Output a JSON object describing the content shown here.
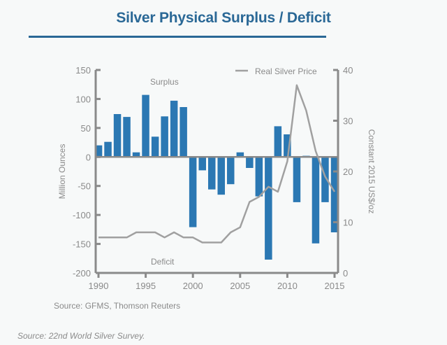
{
  "header": {
    "title": "Silver Physical Surplus / Deficit"
  },
  "chart_data": {
    "type": "bar",
    "title": "Silver Physical Surplus / Deficit",
    "categories": [
      1990,
      1991,
      1992,
      1993,
      1994,
      1995,
      1996,
      1997,
      1998,
      1999,
      2000,
      2001,
      2002,
      2003,
      2004,
      2005,
      2006,
      2007,
      2008,
      2009,
      2010,
      2011,
      2012,
      2013,
      2014,
      2015
    ],
    "series": [
      {
        "name": "Surplus / Deficit",
        "type": "bar",
        "axis": "left",
        "color": "#2b78b3",
        "values": [
          20,
          26,
          74,
          69,
          8,
          107,
          35,
          70,
          97,
          86,
          -121,
          -23,
          -56,
          -65,
          -47,
          8,
          -19,
          -68,
          -177,
          53,
          39,
          -78,
          2,
          -149,
          -78,
          -130
        ]
      },
      {
        "name": "Real Silver Price",
        "type": "line",
        "axis": "right",
        "color": "#a0a0a0",
        "values": [
          7,
          7,
          7,
          7,
          8,
          8,
          8,
          7,
          8,
          7,
          7,
          6,
          6,
          6,
          8,
          9,
          14,
          15,
          17,
          16,
          22,
          37,
          32,
          24,
          19,
          16
        ]
      }
    ],
    "xlabel": "",
    "ylabel": "Million Ounces",
    "y2label": "Constant 2015 US$/oz",
    "ylim": [
      -200,
      150
    ],
    "y2lim": [
      0,
      40
    ],
    "xlim": [
      1990,
      2015
    ],
    "yticks": [
      150,
      100,
      50,
      0,
      -50,
      -100,
      -150,
      -200
    ],
    "y2ticks": [
      40,
      30,
      20,
      10,
      0
    ],
    "xticks": [
      1990,
      1995,
      2000,
      2005,
      2010,
      2015
    ],
    "annotations": [
      "Surplus",
      "Deficit"
    ],
    "legend": {
      "label": "Real Silver Price",
      "position": "top-right"
    },
    "grid": false
  },
  "labels": {
    "surplus": "Surplus",
    "deficit": "Deficit",
    "legend": "Real Silver Price",
    "ylabel": "Million Ounces",
    "y2label": "Constant 2015 US$/oz"
  },
  "footer": {
    "source": "Source: GFMS, Thomson Reuters",
    "footnote": "Source: 22nd World Silver Survey."
  }
}
